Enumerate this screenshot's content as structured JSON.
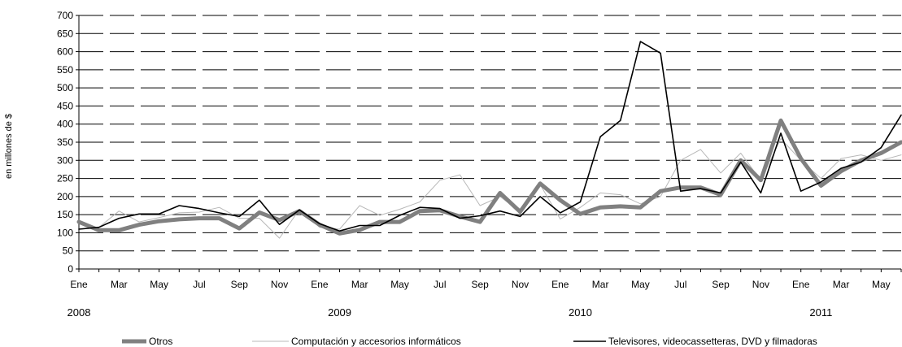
{
  "chart_data": {
    "type": "line",
    "ylabel": "en millones de $",
    "ylim": [
      0,
      700
    ],
    "yticks": [
      0,
      50,
      100,
      150,
      200,
      250,
      300,
      350,
      400,
      450,
      500,
      550,
      600,
      650,
      700
    ],
    "grid": true,
    "legend_position": "bottom",
    "month_tick_labels": [
      "Ene",
      "Mar",
      "May",
      "Jul",
      "Sep",
      "Nov",
      "Ene",
      "Mar",
      "May",
      "Jul",
      "Sep",
      "Nov",
      "Ene",
      "Mar",
      "May",
      "Jul",
      "Sep",
      "Nov",
      "Ene",
      "Mar",
      "May"
    ],
    "year_labels": [
      {
        "label": "2008",
        "month_index": 0
      },
      {
        "label": "2009",
        "month_index": 13
      },
      {
        "label": "2010",
        "month_index": 25
      },
      {
        "label": "2011",
        "month_index": 37
      }
    ],
    "x": [
      "2008-01",
      "2008-02",
      "2008-03",
      "2008-04",
      "2008-05",
      "2008-06",
      "2008-07",
      "2008-08",
      "2008-09",
      "2008-10",
      "2008-11",
      "2008-12",
      "2009-01",
      "2009-02",
      "2009-03",
      "2009-04",
      "2009-05",
      "2009-06",
      "2009-07",
      "2009-08",
      "2009-09",
      "2009-10",
      "2009-11",
      "2009-12",
      "2010-01",
      "2010-02",
      "2010-03",
      "2010-04",
      "2010-05",
      "2010-06",
      "2010-07",
      "2010-08",
      "2010-09",
      "2010-10",
      "2010-11",
      "2010-12",
      "2011-01",
      "2011-02",
      "2011-03",
      "2011-04",
      "2011-05",
      "2011-06"
    ],
    "series": [
      {
        "name": "Otros",
        "color": "#808080",
        "values": [
          130,
          107,
          107,
          122,
          132,
          137,
          140,
          140,
          112,
          156,
          135,
          160,
          122,
          98,
          108,
          130,
          130,
          160,
          162,
          145,
          130,
          210,
          158,
          236,
          190,
          152,
          170,
          173,
          170,
          215,
          225,
          225,
          205,
          300,
          245,
          410,
          305,
          230,
          270,
          300,
          320,
          350
        ]
      },
      {
        "name": "Computación y accesorios informáticos",
        "color": "#b8b8b8",
        "values": [
          110,
          115,
          160,
          130,
          142,
          155,
          157,
          170,
          140,
          140,
          85,
          165,
          115,
          110,
          175,
          148,
          165,
          185,
          245,
          260,
          175,
          200,
          158,
          233,
          138,
          170,
          210,
          205,
          180,
          200,
          300,
          330,
          265,
          320,
          245,
          360,
          300,
          250,
          305,
          315,
          300,
          315
        ]
      },
      {
        "name": "Televisores, videocassetteras, DVD y filmadoras",
        "color": "#000000",
        "values": [
          110,
          115,
          140,
          152,
          152,
          175,
          167,
          155,
          145,
          190,
          123,
          163,
          125,
          105,
          120,
          120,
          148,
          170,
          167,
          140,
          147,
          160,
          145,
          200,
          155,
          185,
          365,
          410,
          628,
          596,
          215,
          222,
          210,
          295,
          210,
          375,
          215,
          240,
          278,
          295,
          335,
          425
        ]
      }
    ]
  }
}
